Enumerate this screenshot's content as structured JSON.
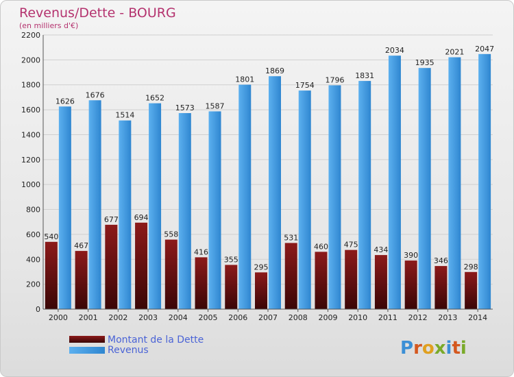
{
  "chart_data": {
    "type": "bar",
    "title": "Revenus/Dette - BOURG",
    "subtitle": "(en milliers d'€)",
    "categories": [
      "2000",
      "2001",
      "2002",
      "2003",
      "2004",
      "2005",
      "2006",
      "2007",
      "2008",
      "2009",
      "2010",
      "2011",
      "2012",
      "2013",
      "2014"
    ],
    "series": [
      {
        "name": "Montant de la Dette",
        "color": "#7a1212",
        "values": [
          540,
          467,
          677,
          694,
          558,
          416,
          355,
          295,
          531,
          460,
          475,
          434,
          390,
          346,
          298
        ]
      },
      {
        "name": "Revenus",
        "color": "#3d9ae0",
        "values": [
          1626,
          1676,
          1514,
          1652,
          1573,
          1587,
          1801,
          1869,
          1754,
          1796,
          1831,
          2034,
          1935,
          2021,
          2047
        ]
      }
    ],
    "ylim": [
      0,
      2200
    ],
    "yticks": [
      0,
      200,
      400,
      600,
      800,
      1000,
      1200,
      1400,
      1600,
      1800,
      2000,
      2200
    ],
    "grid": true,
    "legend_position": "bottom-left"
  },
  "logo": {
    "text": "Proxiti"
  }
}
